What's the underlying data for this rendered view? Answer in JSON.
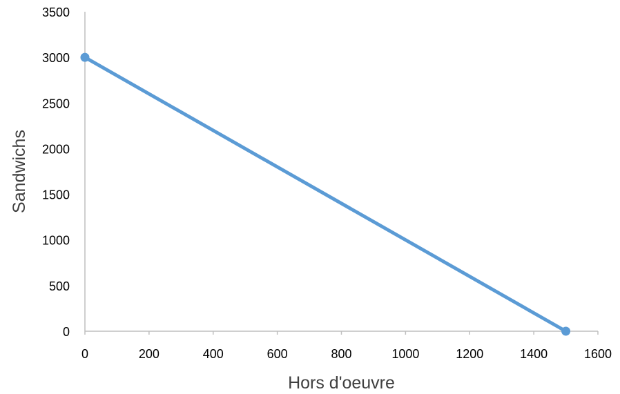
{
  "chart_data": {
    "type": "line",
    "title": "",
    "xlabel": "Hors d'oeuvre",
    "ylabel": "Sandwichs",
    "xlim": [
      0,
      1600
    ],
    "ylim": [
      0,
      3500
    ],
    "x_ticks": [
      0,
      200,
      400,
      600,
      800,
      1000,
      1200,
      1400,
      1600
    ],
    "y_ticks": [
      0,
      500,
      1000,
      1500,
      2000,
      2500,
      3000,
      3500
    ],
    "grid": false,
    "legend": "none",
    "series": [
      {
        "color": "#5b9bd5",
        "points": [
          {
            "x": 0,
            "y": 3000
          },
          {
            "x": 1500,
            "y": 0
          }
        ]
      }
    ]
  },
  "colors": {
    "series_line": "#5b9bd5",
    "axis_line": "#bfbfbf"
  }
}
